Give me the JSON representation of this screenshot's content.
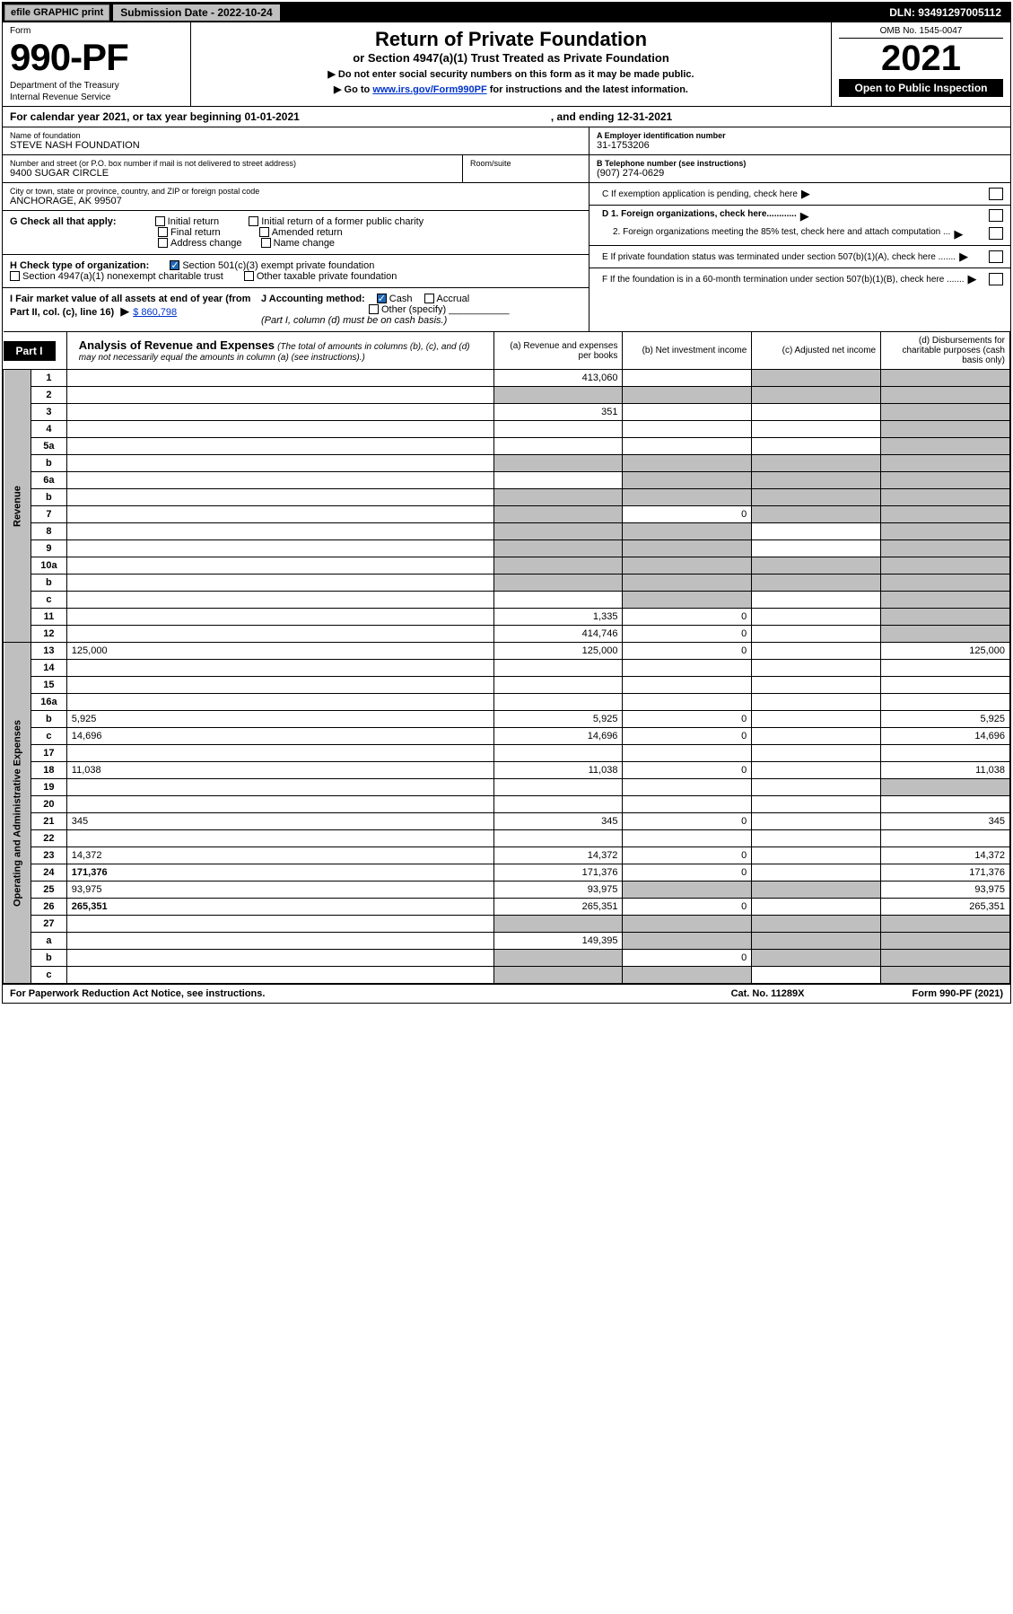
{
  "topbar": {
    "efile": "efile GRAPHIC print",
    "submission": "Submission Date - 2022-10-24",
    "dln": "DLN: 93491297005112"
  },
  "header": {
    "form_label": "Form",
    "form_num": "990-PF",
    "dept1": "Department of the Treasury",
    "dept2": "Internal Revenue Service",
    "title": "Return of Private Foundation",
    "subtitle": "or Section 4947(a)(1) Trust Treated as Private Foundation",
    "note1": "▶ Do not enter social security numbers on this form as it may be made public.",
    "note2": "▶ Go to ",
    "link": "www.irs.gov/Form990PF",
    "note2b": " for instructions and the latest information.",
    "omb": "OMB No. 1545-0047",
    "year": "2021",
    "open": "Open to Public Inspection"
  },
  "cal": {
    "text1": "For calendar year 2021, or tax year beginning 01-01-2021",
    "text2": ", and ending 12-31-2021"
  },
  "info": {
    "name_label": "Name of foundation",
    "name": "STEVE NASH FOUNDATION",
    "addr_label": "Number and street (or P.O. box number if mail is not delivered to street address)",
    "addr": "9400 SUGAR CIRCLE",
    "room_label": "Room/suite",
    "city_label": "City or town, state or province, country, and ZIP or foreign postal code",
    "city": "ANCHORAGE, AK  99507",
    "ein_label": "A Employer identification number",
    "ein": "31-1753206",
    "tel_label": "B Telephone number (see instructions)",
    "tel": "(907) 274-0629",
    "c_label": "C If exemption application is pending, check here",
    "d1": "D 1. Foreign organizations, check here............",
    "d2": "2. Foreign organizations meeting the 85% test, check here and attach computation ...",
    "e_label": "E  If private foundation status was terminated under section 507(b)(1)(A), check here .......",
    "f_label": "F  If the foundation is in a 60-month termination under section 507(b)(1)(B), check here .......",
    "g_label": "G Check all that apply:",
    "g_opts": [
      "Initial return",
      "Initial return of a former public charity",
      "Final return",
      "Amended return",
      "Address change",
      "Name change"
    ],
    "h_label": "H Check type of organization:",
    "h_opt1": "Section 501(c)(3) exempt private foundation",
    "h_opt2": "Section 4947(a)(1) nonexempt charitable trust",
    "h_opt3": "Other taxable private foundation",
    "i_label": "I Fair market value of all assets at end of year (from Part II, col. (c), line 16)",
    "i_val": "$  860,798",
    "j_label": "J Accounting method:",
    "j_cash": "Cash",
    "j_accrual": "Accrual",
    "j_other": "Other (specify)",
    "j_note": "(Part I, column (d) must be on cash basis.)"
  },
  "part1": {
    "label": "Part I",
    "title": "Analysis of Revenue and Expenses",
    "sub": " (The total of amounts in columns (b), (c), and (d) may not necessarily equal the amounts in column (a) (see instructions).)",
    "col_a": "(a)    Revenue and expenses per books",
    "col_b": "(b)    Net investment income",
    "col_c": "(c)   Adjusted net income",
    "col_d": "(d)   Disbursements for charitable purposes (cash basis only)"
  },
  "sections": {
    "revenue": "Revenue",
    "expenses": "Operating and Administrative Expenses"
  },
  "rows": [
    {
      "n": "1",
      "d": "",
      "a": "413,060",
      "b": "",
      "c": "",
      "shade_c": true,
      "shade_d": true
    },
    {
      "n": "2",
      "d": "",
      "a": "",
      "b": "",
      "c": "",
      "shade_a": true,
      "shade_b": true,
      "shade_c": true,
      "shade_d": true
    },
    {
      "n": "3",
      "d": "",
      "a": "351",
      "b": "",
      "c": "",
      "shade_d": true
    },
    {
      "n": "4",
      "d": "",
      "a": "",
      "b": "",
      "c": "",
      "shade_d": true
    },
    {
      "n": "5a",
      "d": "",
      "a": "",
      "b": "",
      "c": "",
      "shade_d": true
    },
    {
      "n": "b",
      "d": "",
      "a": "",
      "b": "",
      "c": "",
      "shade_a": true,
      "shade_b": true,
      "shade_c": true,
      "shade_d": true
    },
    {
      "n": "6a",
      "d": "",
      "a": "",
      "b": "",
      "c": "",
      "shade_b": true,
      "shade_c": true,
      "shade_d": true
    },
    {
      "n": "b",
      "d": "",
      "a": "",
      "b": "",
      "c": "",
      "shade_a": true,
      "shade_b": true,
      "shade_c": true,
      "shade_d": true
    },
    {
      "n": "7",
      "d": "",
      "a": "",
      "b": "0",
      "c": "",
      "shade_a": true,
      "shade_c": true,
      "shade_d": true
    },
    {
      "n": "8",
      "d": "",
      "a": "",
      "b": "",
      "c": "",
      "shade_a": true,
      "shade_b": true,
      "shade_d": true
    },
    {
      "n": "9",
      "d": "",
      "a": "",
      "b": "",
      "c": "",
      "shade_a": true,
      "shade_b": true,
      "shade_d": true
    },
    {
      "n": "10a",
      "d": "",
      "a": "",
      "b": "",
      "c": "",
      "shade_a": true,
      "shade_b": true,
      "shade_c": true,
      "shade_d": true
    },
    {
      "n": "b",
      "d": "",
      "a": "",
      "b": "",
      "c": "",
      "shade_a": true,
      "shade_b": true,
      "shade_c": true,
      "shade_d": true
    },
    {
      "n": "c",
      "d": "",
      "a": "",
      "b": "",
      "c": "",
      "shade_b": true,
      "shade_d": true
    },
    {
      "n": "11",
      "d": "",
      "a": "1,335",
      "b": "0",
      "c": "",
      "shade_d": true
    },
    {
      "n": "12",
      "d": "",
      "a": "414,746",
      "b": "0",
      "c": "",
      "bold": true,
      "shade_d": true
    },
    {
      "n": "13",
      "d": "125,000",
      "a": "125,000",
      "b": "0",
      "c": ""
    },
    {
      "n": "14",
      "d": "",
      "a": "",
      "b": "",
      "c": ""
    },
    {
      "n": "15",
      "d": "",
      "a": "",
      "b": "",
      "c": ""
    },
    {
      "n": "16a",
      "d": "",
      "a": "",
      "b": "",
      "c": ""
    },
    {
      "n": "b",
      "d": "5,925",
      "a": "5,925",
      "b": "0",
      "c": ""
    },
    {
      "n": "c",
      "d": "14,696",
      "a": "14,696",
      "b": "0",
      "c": ""
    },
    {
      "n": "17",
      "d": "",
      "a": "",
      "b": "",
      "c": ""
    },
    {
      "n": "18",
      "d": "11,038",
      "a": "11,038",
      "b": "0",
      "c": ""
    },
    {
      "n": "19",
      "d": "",
      "a": "",
      "b": "",
      "c": "",
      "shade_d": true
    },
    {
      "n": "20",
      "d": "",
      "a": "",
      "b": "",
      "c": ""
    },
    {
      "n": "21",
      "d": "345",
      "a": "345",
      "b": "0",
      "c": ""
    },
    {
      "n": "22",
      "d": "",
      "a": "",
      "b": "",
      "c": ""
    },
    {
      "n": "23",
      "d": "14,372",
      "a": "14,372",
      "b": "0",
      "c": ""
    },
    {
      "n": "24",
      "d": "171,376",
      "a": "171,376",
      "b": "0",
      "c": "",
      "bold": true
    },
    {
      "n": "25",
      "d": "93,975",
      "a": "93,975",
      "b": "",
      "c": "",
      "shade_b": true,
      "shade_c": true
    },
    {
      "n": "26",
      "d": "265,351",
      "a": "265,351",
      "b": "0",
      "c": "",
      "bold": true
    },
    {
      "n": "27",
      "d": "",
      "a": "",
      "b": "",
      "c": "",
      "shade_a": true,
      "shade_b": true,
      "shade_c": true,
      "shade_d": true
    },
    {
      "n": "a",
      "d": "",
      "a": "149,395",
      "b": "",
      "c": "",
      "bold": true,
      "shade_b": true,
      "shade_c": true,
      "shade_d": true
    },
    {
      "n": "b",
      "d": "",
      "a": "",
      "b": "0",
      "c": "",
      "bold": true,
      "shade_a": true,
      "shade_c": true,
      "shade_d": true
    },
    {
      "n": "c",
      "d": "",
      "a": "",
      "b": "",
      "c": "",
      "bold": true,
      "shade_a": true,
      "shade_b": true,
      "shade_d": true
    }
  ],
  "footer": {
    "left": "For Paperwork Reduction Act Notice, see instructions.",
    "mid": "Cat. No. 11289X",
    "right": "Form 990-PF (2021)"
  }
}
